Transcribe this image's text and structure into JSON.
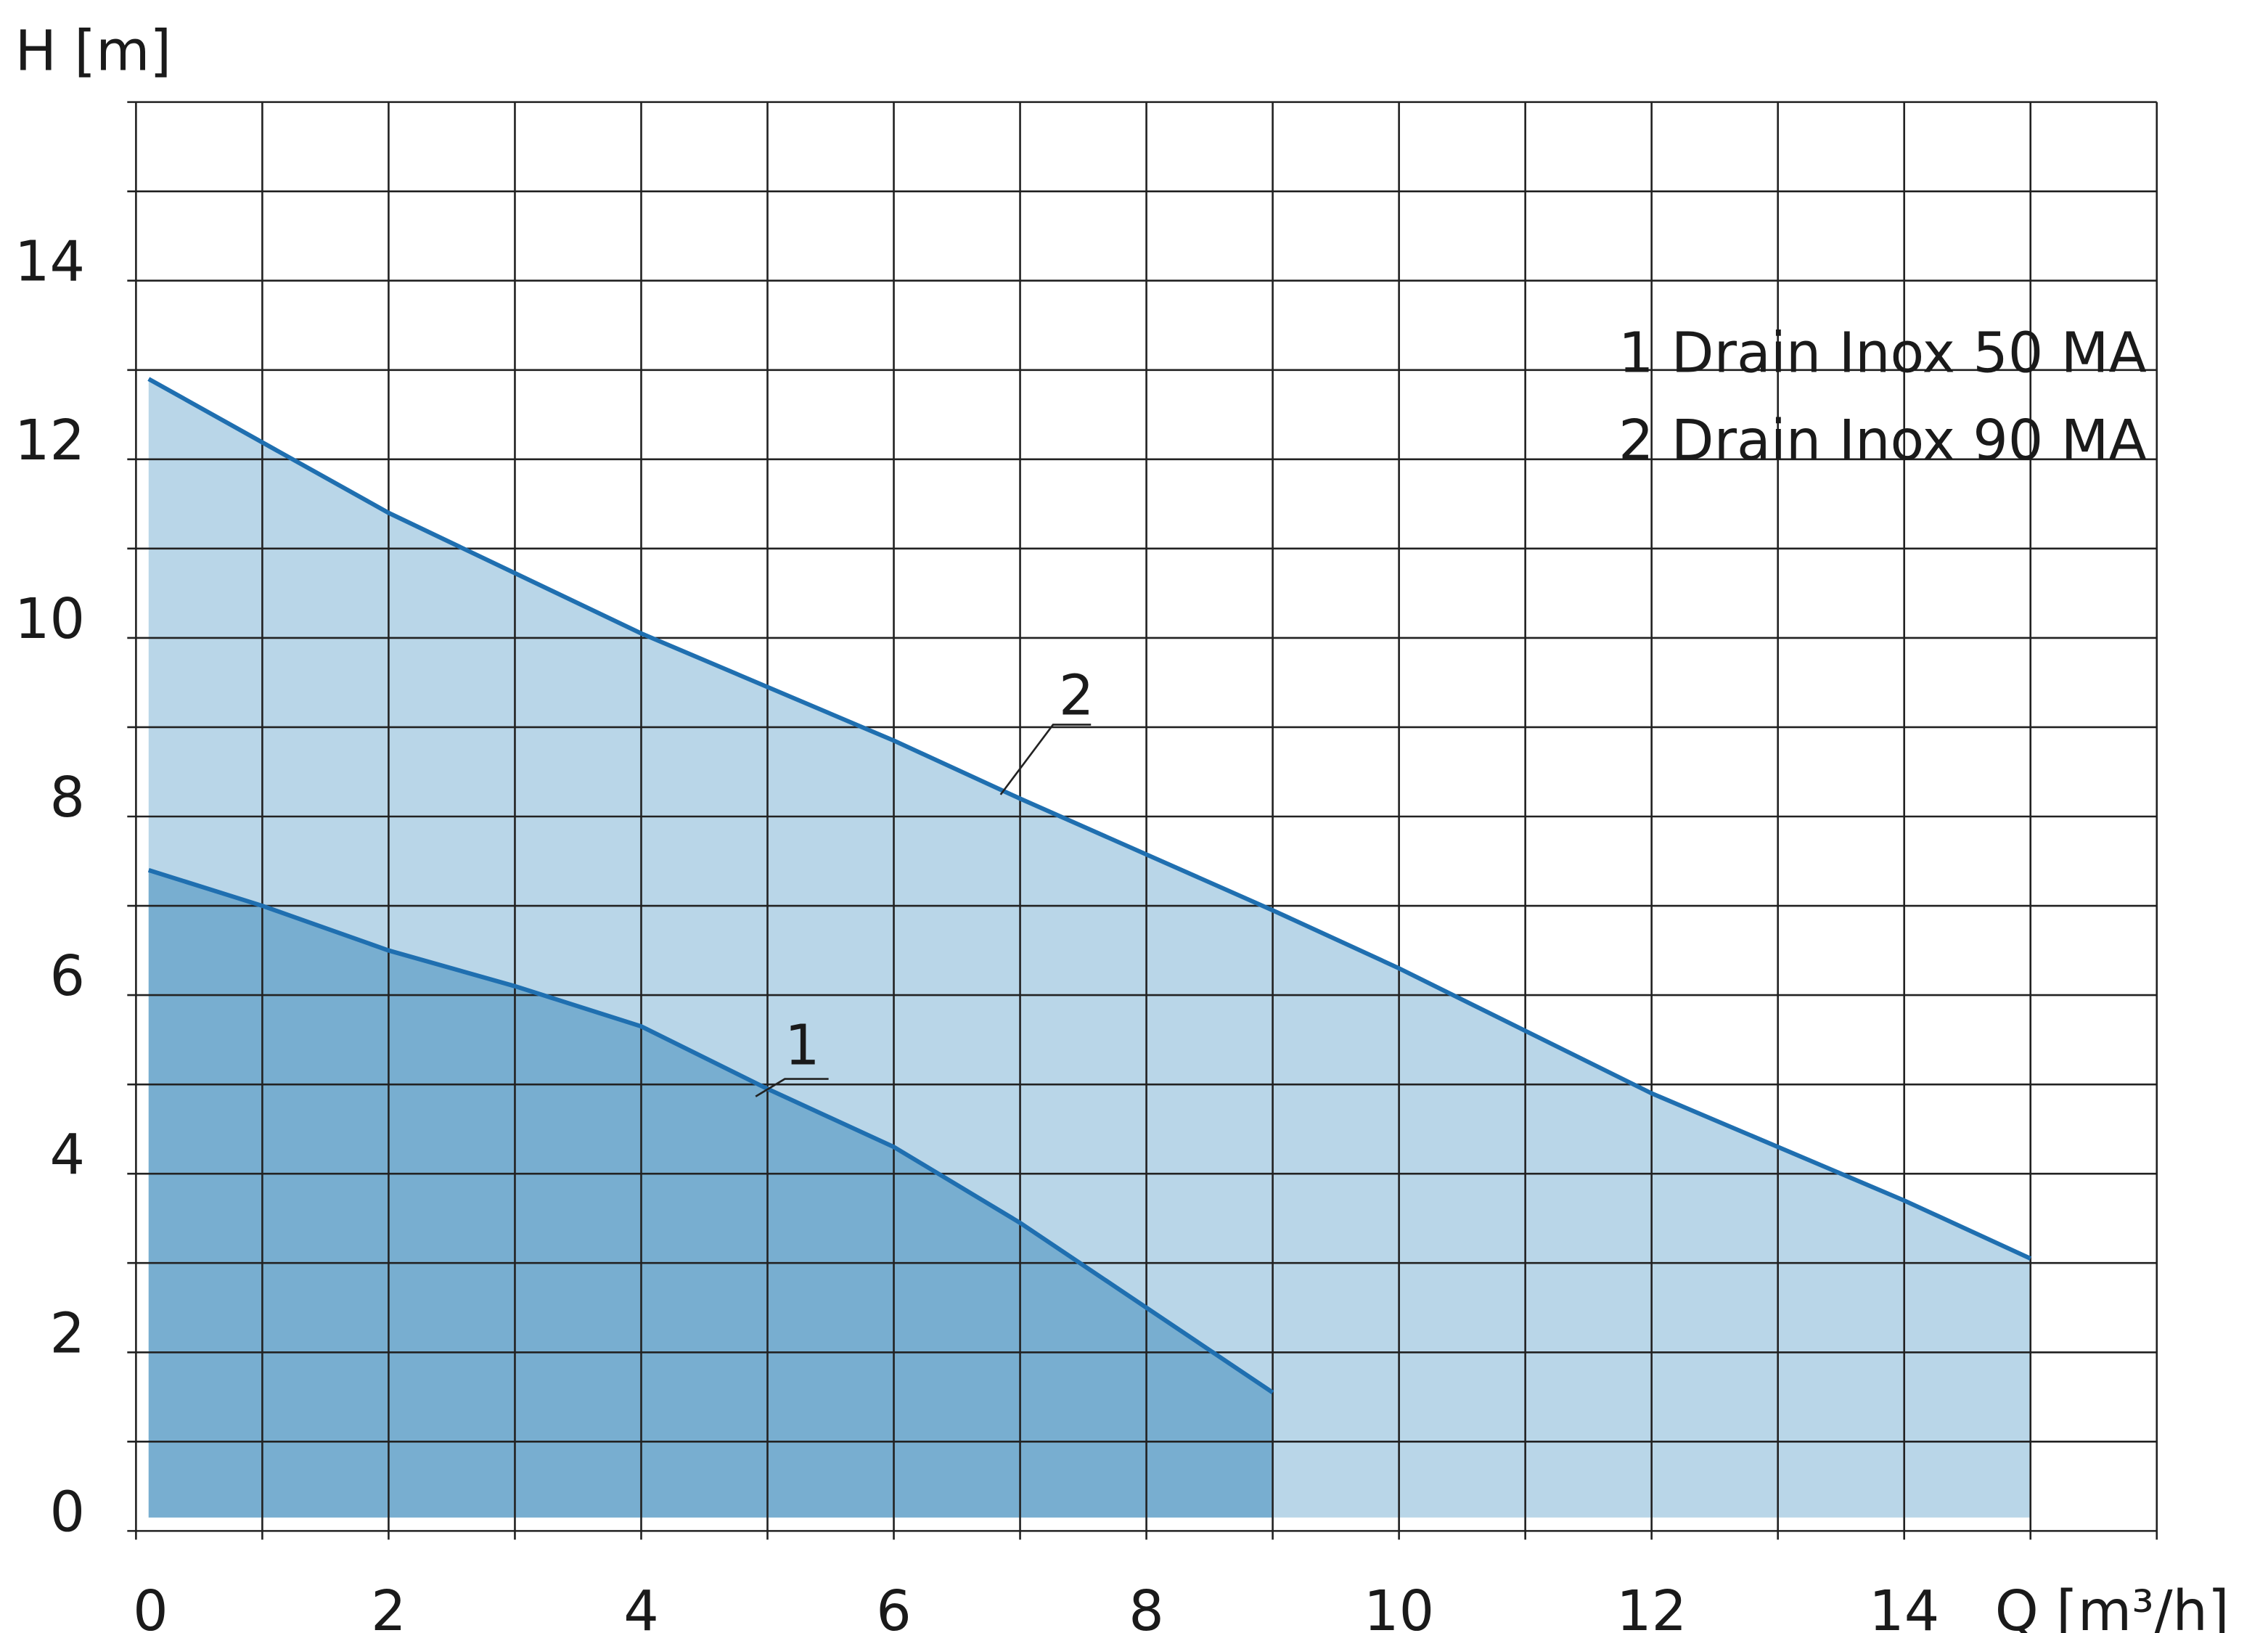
{
  "chart_data": {
    "type": "area",
    "title": "",
    "xlabel": "Q [m³/h]",
    "ylabel": "H [m]",
    "xlim": [
      0,
      16
    ],
    "ylim": [
      0,
      16
    ],
    "x_ticks": [
      "0",
      "2",
      "4",
      "6",
      "8",
      "10",
      "12",
      "14"
    ],
    "y_ticks": [
      "0",
      "2",
      "4",
      "6",
      "8",
      "10",
      "12",
      "14"
    ],
    "grid": true,
    "legend_position": "top-right",
    "legend": [
      "1 Drain Inox 50 MA",
      "2 Drain Inox 90 MA"
    ],
    "series": [
      {
        "name": "1 Drain Inox 50 MA",
        "label": "1",
        "color": "#1f6fb0",
        "fill": "#78aed0",
        "x": [
          0.1,
          1,
          2,
          3,
          4,
          5,
          6,
          7,
          8,
          9
        ],
        "y": [
          7.4,
          7.0,
          6.5,
          6.1,
          5.65,
          4.95,
          4.3,
          3.45,
          2.5,
          1.55
        ]
      },
      {
        "name": "2 Drain Inox 90 MA",
        "label": "2",
        "color": "#1f6fb0",
        "fill": "#b9d6e8",
        "x": [
          0.1,
          2,
          4,
          6,
          7,
          9,
          10,
          12,
          14,
          15
        ],
        "y": [
          12.9,
          11.4,
          10.05,
          8.85,
          8.2,
          6.95,
          6.3,
          4.9,
          3.7,
          3.05
        ]
      }
    ]
  }
}
